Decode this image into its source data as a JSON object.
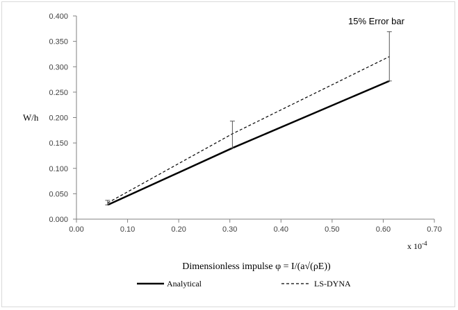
{
  "chart_data": {
    "type": "line",
    "xlabel": "Dimensionless impulse φ = I/(a√(ρE))",
    "ylabel": "W/h",
    "x_multiplier": {
      "base": "x 10",
      "exponent": "-4"
    },
    "xlim": [
      0.0,
      0.7
    ],
    "ylim": [
      0.0,
      0.4
    ],
    "x_ticks": [
      "0.00",
      "0.10",
      "0.20",
      "0.30",
      "0.40",
      "0.50",
      "0.60",
      "0.70"
    ],
    "y_ticks": [
      "0.000",
      "0.050",
      "0.100",
      "0.150",
      "0.200",
      "0.250",
      "0.300",
      "0.350",
      "0.400"
    ],
    "grid": false,
    "legend_position": "bottom",
    "series": [
      {
        "name": "Analytical",
        "style": "solid",
        "color": "#000000",
        "x": [
          0.061,
          0.305,
          0.612
        ],
        "y": [
          0.028,
          0.14,
          0.272
        ],
        "error_bars": [
          {
            "x": 0.061,
            "low": 0.028,
            "high": 0.037
          },
          {
            "x": 0.305,
            "low": 0.14,
            "high": 0.193
          },
          {
            "x": 0.612,
            "low": 0.272,
            "high": 0.369
          }
        ]
      },
      {
        "name": "LS-DYNA",
        "style": "dashed",
        "color": "#000000",
        "x": [
          0.061,
          0.305,
          0.612
        ],
        "y": [
          0.032,
          0.168,
          0.32
        ]
      }
    ],
    "annotations": [
      {
        "text": "15% Error bar",
        "x": 0.612,
        "y": 0.369
      }
    ]
  }
}
